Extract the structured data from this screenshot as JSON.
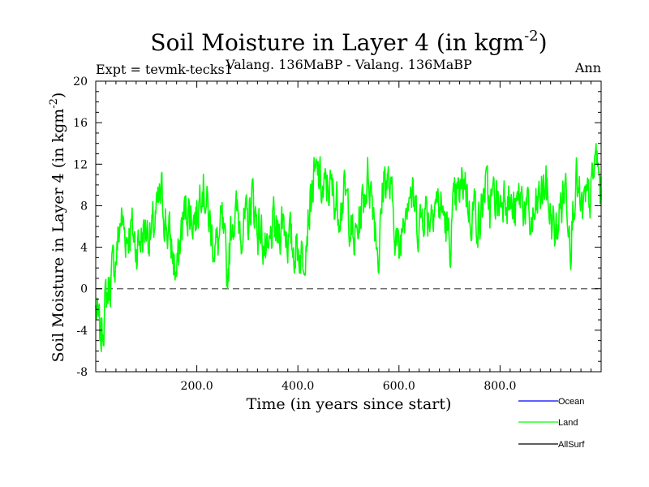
{
  "header": {
    "title_main": "Soil Moisture in Layer 4 (in kgm",
    "title_sup": "-2",
    "title_close": ")",
    "expt": "Expt = tevmk-tecks1",
    "subtitle": "Valang. 136MaBP - Valang. 136MaBP",
    "season": "Ann"
  },
  "colors": {
    "ocean": "#0000ff",
    "land": "#00ff00",
    "allsurf": "#000000",
    "zero_line": "#555555",
    "axis": "#000000"
  },
  "chart_data": {
    "type": "line",
    "title": "Soil Moisture in Layer 4 (in kgm-2)",
    "xlabel": "Time (in years since start)",
    "ylabel_main": "Soil Moisture in Layer 4 (in kgm",
    "ylabel_sup": "-2",
    "ylabel_close": ")",
    "xlim": [
      0,
      1000
    ],
    "ylim": [
      -8,
      20
    ],
    "x_ticks": [
      200,
      400,
      600,
      800
    ],
    "x_tick_labels": [
      "200.0",
      "400.0",
      "600.0",
      "800.0"
    ],
    "y_ticks": [
      -8,
      -4,
      0,
      4,
      8,
      12,
      16,
      20
    ],
    "y_tick_labels": [
      "-8",
      "-4",
      "0",
      "4",
      "8",
      "12",
      "16",
      "20"
    ],
    "reference_line": 0,
    "legend": [
      {
        "name": "Ocean",
        "color_key": "ocean"
      },
      {
        "name": "Land",
        "color_key": "land"
      },
      {
        "name": "AllSurf",
        "color_key": "allsurf"
      }
    ],
    "series": [
      {
        "name": "Land",
        "sample_every_years": 10,
        "anchors_x": [
          0,
          10,
          20,
          30,
          40,
          50,
          60,
          70,
          80,
          90,
          100,
          110,
          120,
          130,
          140,
          150,
          160,
          170,
          180,
          190,
          200,
          210,
          220,
          230,
          240,
          250,
          260,
          270,
          280,
          290,
          300,
          310,
          320,
          330,
          340,
          350,
          360,
          370,
          380,
          390,
          400,
          410,
          420,
          430,
          440,
          450,
          460,
          470,
          480,
          490,
          500,
          510,
          520,
          530,
          540,
          550,
          560,
          570,
          580,
          590,
          600,
          610,
          620,
          630,
          640,
          650,
          660,
          670,
          680,
          690,
          700,
          710,
          720,
          730,
          740,
          750,
          760,
          770,
          780,
          790,
          800,
          810,
          820,
          830,
          840,
          850,
          860,
          870,
          880,
          890,
          900,
          910,
          920,
          930,
          940,
          950,
          960,
          970,
          980,
          990,
          1000
        ],
        "anchors_y": [
          -2,
          -5,
          -1,
          1,
          3,
          7,
          5,
          6,
          4,
          5,
          6,
          5,
          7,
          9,
          6,
          4,
          1,
          6,
          8,
          7,
          7,
          11,
          8,
          5,
          4,
          6,
          1,
          7,
          7,
          6,
          6,
          9,
          6,
          5,
          2,
          6,
          5,
          7,
          5,
          4,
          4,
          3,
          7,
          10,
          11,
          9,
          10,
          9,
          8,
          9,
          8,
          4,
          6,
          9,
          11,
          8,
          3,
          11,
          10,
          7,
          3,
          8,
          10,
          8,
          6,
          8,
          7,
          9,
          8,
          7,
          4,
          8,
          9,
          11,
          7,
          8,
          6,
          10,
          8,
          9,
          8,
          10,
          8,
          7,
          9,
          8,
          6,
          7,
          9,
          10,
          7,
          5,
          8,
          10,
          5,
          11,
          7,
          8,
          9,
          13,
          9
        ]
      }
    ]
  }
}
